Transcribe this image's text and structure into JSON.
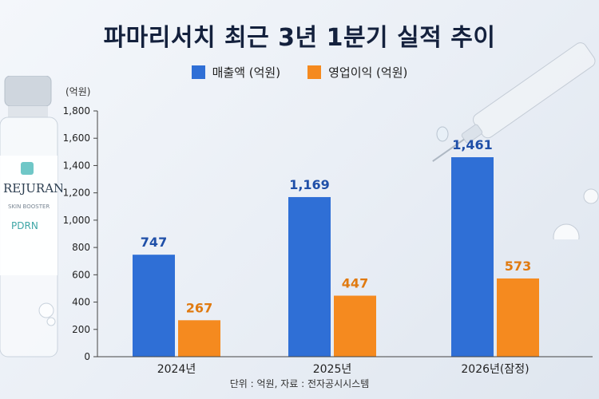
{
  "header": {
    "title": "파마리서치 최근 3년 1분기 실적 추이"
  },
  "legend": {
    "revenue": "매출액 (억원)",
    "operating_profit": "영업이익 (억원)"
  },
  "unit_label": "(억원)",
  "source_note": "단위 : 억원, 자료 : 전자공시시스템",
  "decor": {
    "brand": "REJURAN",
    "product_line": "SKIN BOOSTER",
    "ingredient": "PDRN"
  },
  "colors": {
    "revenue": "#2f6fd6",
    "operating_profit": "#f58a1f",
    "revenue_label": "#1f4fa8",
    "operating_profit_label": "#e07a10"
  },
  "chart_data": {
    "type": "bar",
    "categories": [
      "2024년",
      "2025년",
      "2026년(잠정)"
    ],
    "series": [
      {
        "name": "매출액 (억원)",
        "values": [
          747,
          1169,
          1461
        ],
        "labels": [
          "747",
          "1,169",
          "1,461"
        ]
      },
      {
        "name": "영업이익 (억원)",
        "values": [
          267,
          447,
          573
        ],
        "labels": [
          "267",
          "447",
          "573"
        ]
      }
    ],
    "y_ticks": [
      "0",
      "200",
      "400",
      "600",
      "800",
      "1,000",
      "1,200",
      "1,400",
      "1,600",
      "1,800"
    ],
    "ylim": [
      0,
      1800
    ],
    "ylabel": "(억원)",
    "grid": false,
    "legend_position": "top"
  }
}
